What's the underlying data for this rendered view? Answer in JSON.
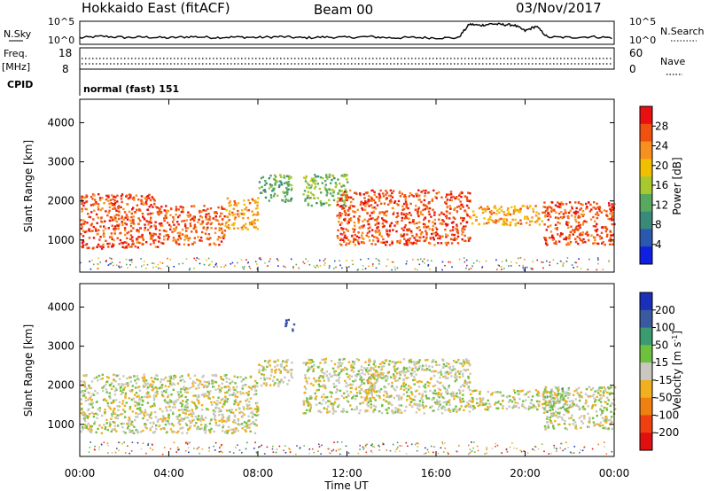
{
  "header": {
    "title": "Hokkaido East (fitACF)",
    "beam": "Beam 00",
    "date": "03/Nov/2017"
  },
  "status_panel": {
    "nsky_label": "N.Sky",
    "nsky_ticks": [
      "10^5",
      "10^0"
    ],
    "nsearch_label": "N.Search",
    "freq_label": "Freq.",
    "freq_unit": "[MHz]",
    "freq_ticks": [
      "18",
      "8"
    ],
    "nave_label": "Nave",
    "nave_ticks": [
      "60",
      "0"
    ],
    "cpid_label": "CPID",
    "cpid_value": "normal (fast) 151"
  },
  "axes": {
    "xlabel": "Time UT",
    "ylabel": "Slant Range [km]",
    "x_ticks": [
      "00:00",
      "04:00",
      "08:00",
      "12:00",
      "16:00",
      "20:00",
      "00:00"
    ],
    "y_ticks": [
      "1000",
      "2000",
      "3000",
      "4000"
    ]
  },
  "colorbars": {
    "power": {
      "label": "Power [dB]",
      "ticks": [
        "4",
        "8",
        "12",
        "16",
        "20",
        "24",
        "28"
      ],
      "colors": [
        "#1020e0",
        "#2a58b0",
        "#3a8a7a",
        "#58a860",
        "#a8c830",
        "#f0c000",
        "#f89020",
        "#f05010",
        "#e81010"
      ]
    },
    "velocity": {
      "label": "Velocity [m s",
      "label_sup": "-1",
      "label_end": "]",
      "ticks": [
        "200",
        "100",
        "50",
        "15",
        "-15",
        "-50",
        "-100",
        "-200"
      ],
      "colors": [
        "#1a30b8",
        "#3a5aa0",
        "#3a9a70",
        "#70c040",
        "#c8c8c0",
        "#f0b020",
        "#f08010",
        "#f04010",
        "#e01010"
      ]
    }
  },
  "chart_data": [
    {
      "type": "line",
      "name": "N.Sky / N.Search",
      "x_hours": [
        0,
        1,
        2,
        3,
        4,
        5,
        6,
        7,
        8,
        9,
        10,
        11,
        12,
        13,
        14,
        15,
        16,
        17,
        17.5,
        18,
        18.5,
        19,
        19.5,
        20,
        20.5,
        21,
        22,
        23,
        24
      ],
      "log10_nsky": [
        1.2,
        1.6,
        1.3,
        1.4,
        1.2,
        1.5,
        1.3,
        1.4,
        1.3,
        1.5,
        1.2,
        1.4,
        1.3,
        1.5,
        1.2,
        1.3,
        1.2,
        1.2,
        4.7,
        4.4,
        4.8,
        4.6,
        4.5,
        3.0,
        4.2,
        1.4,
        1.3,
        1.5,
        1.2
      ]
    },
    {
      "type": "heatmap",
      "name": "Power",
      "x_range_hours": [
        0,
        24
      ],
      "y_range_km": [
        180,
        4600
      ],
      "color_range_db": [
        0,
        32
      ],
      "echo_regions": [
        {
          "t_start": 0.0,
          "t_end": 3.5,
          "range_km": [
            800,
            2200
          ],
          "power_db": 27
        },
        {
          "t_start": 3.5,
          "t_end": 6.5,
          "range_km": [
            900,
            1900
          ],
          "power_db": 26
        },
        {
          "t_start": 6.5,
          "t_end": 8.0,
          "range_km": [
            1300,
            2100
          ],
          "power_db": 22
        },
        {
          "t_start": 8.0,
          "t_end": 9.5,
          "range_km": [
            2000,
            2700
          ],
          "power_db": 12
        },
        {
          "t_start": 10.0,
          "t_end": 12.0,
          "range_km": [
            1900,
            2700
          ],
          "power_db": 14
        },
        {
          "t_start": 11.5,
          "t_end": 17.5,
          "range_km": [
            900,
            2300
          ],
          "power_db": 27
        },
        {
          "t_start": 17.5,
          "t_end": 20.8,
          "range_km": [
            1400,
            1900
          ],
          "power_db": 22
        },
        {
          "t_start": 20.8,
          "t_end": 24.0,
          "range_km": [
            900,
            2000
          ],
          "power_db": 27
        }
      ]
    },
    {
      "type": "heatmap",
      "name": "Velocity",
      "x_range_hours": [
        0,
        24
      ],
      "y_range_km": [
        180,
        4600
      ],
      "color_range_ms": [
        -250,
        250
      ],
      "echo_regions": [
        {
          "t_start": 0.0,
          "t_end": 8.0,
          "range_km": [
            800,
            2300
          ],
          "velocity_ms": 0
        },
        {
          "t_start": 8.0,
          "t_end": 9.5,
          "range_km": [
            2000,
            2700
          ],
          "velocity_ms": 0
        },
        {
          "t_start": 9.2,
          "t_end": 9.6,
          "range_km": [
            3400,
            3700
          ],
          "velocity_ms": 200
        },
        {
          "t_start": 10.0,
          "t_end": 17.5,
          "range_km": [
            1300,
            2700
          ],
          "velocity_ms": 0
        },
        {
          "t_start": 12.8,
          "t_end": 13.3,
          "range_km": [
            1800,
            2500
          ],
          "velocity_ms": -30
        },
        {
          "t_start": 17.5,
          "t_end": 20.8,
          "range_km": [
            1400,
            1900
          ],
          "velocity_ms": 0
        },
        {
          "t_start": 20.8,
          "t_end": 22.0,
          "range_km": [
            1300,
            2000
          ],
          "velocity_ms": 40
        },
        {
          "t_start": 20.8,
          "t_end": 24.0,
          "range_km": [
            900,
            2000
          ],
          "velocity_ms": 0
        }
      ]
    }
  ]
}
